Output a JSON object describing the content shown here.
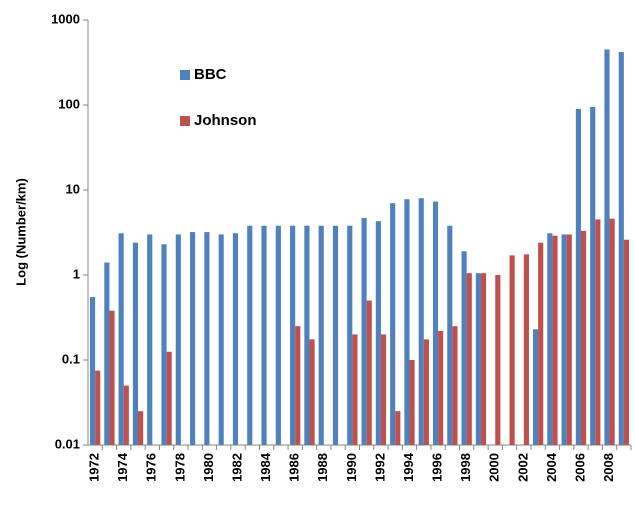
{
  "chart_data": {
    "type": "bar",
    "y_label": "Log (Number/km)",
    "log_scale": true,
    "grid": false,
    "legend": "upper left",
    "categories": [
      "1972",
      null,
      "1974",
      null,
      "1976",
      null,
      "1978",
      null,
      "1980",
      null,
      "1982",
      null,
      "1984",
      null,
      "1986",
      null,
      "1988",
      null,
      "1990",
      null,
      "1992",
      null,
      "1994",
      null,
      "1996",
      null,
      "1998",
      null,
      "2000",
      null,
      "2002",
      null,
      "2004",
      null,
      "2006",
      null,
      "2008",
      null
    ],
    "series": [
      {
        "name": "BBC",
        "color": "#4f81bd",
        "values": [
          0.55,
          1.4,
          3.1,
          2.4,
          3.0,
          2.3,
          3.0,
          3.2,
          3.2,
          3.0,
          3.1,
          3.8,
          3.8,
          3.8,
          3.8,
          3.8,
          3.8,
          3.8,
          3.8,
          4.7,
          4.3,
          7.0,
          7.8,
          8.0,
          7.3,
          3.8,
          1.9,
          1.05,
          null,
          null,
          null,
          0.23,
          3.1,
          3.0,
          90,
          95,
          450,
          420
        ]
      },
      {
        "name": "Johnson",
        "color": "#c0504d",
        "values": [
          0.075,
          0.38,
          0.05,
          0.025,
          null,
          0.125,
          null,
          null,
          null,
          null,
          null,
          null,
          null,
          null,
          0.25,
          0.175,
          null,
          null,
          0.2,
          0.5,
          0.2,
          0.025,
          0.1,
          0.175,
          0.22,
          0.25,
          1.05,
          1.05,
          1.0,
          1.7,
          1.75,
          2.4,
          2.9,
          3.0,
          3.3,
          4.5,
          4.6,
          2.6
        ]
      }
    ],
    "ylim": [
      0.01,
      1000
    ],
    "yticks": [
      0.01,
      0.1,
      1,
      10,
      100,
      1000
    ]
  }
}
